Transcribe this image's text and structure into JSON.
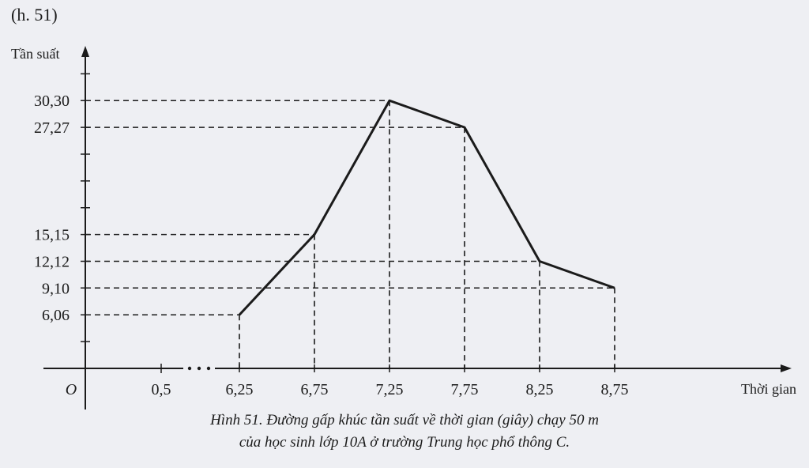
{
  "figure_label": "(h. 51)",
  "caption": {
    "line1": "Hình 51. Đường gấp khúc tần suất về thời gian (giây) chạy 50 m",
    "line2": "của học sinh lớp 10A ở trường Trung học phổ thông C."
  },
  "chart_data": {
    "type": "line",
    "ylabel": "Tần suất",
    "xlabel": "Thời gian",
    "origin_label": "O",
    "x_ticks": [
      "0,5",
      "6,25",
      "6,75",
      "7,25",
      "7,75",
      "8,25",
      "8,75"
    ],
    "y_ticks": [
      "6,06",
      "9,10",
      "12,12",
      "15,15",
      "27,27",
      "30,30"
    ],
    "x_axis_break": true,
    "grid": false,
    "guide_lines": "dashed",
    "series": [
      {
        "x": [
          6.25,
          6.75,
          7.25,
          7.75,
          8.25,
          8.75
        ],
        "y": [
          6.06,
          15.15,
          30.3,
          27.27,
          12.12,
          9.1
        ]
      }
    ],
    "colors": {
      "line": "#1b1b1b",
      "guide": "#1b1b1b",
      "background": "#eeeff3"
    }
  }
}
